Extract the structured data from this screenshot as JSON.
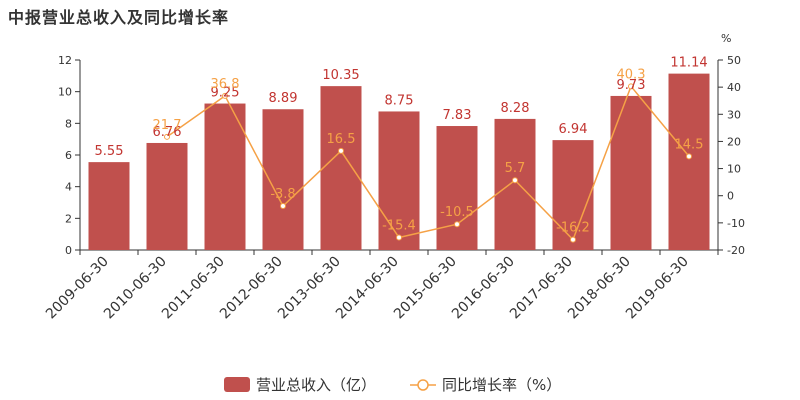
{
  "title": "中报营业总收入及同比增长率",
  "chart_data": {
    "type": "bar",
    "categories": [
      "2009-06-30",
      "2010-06-30",
      "2011-06-30",
      "2012-06-30",
      "2013-06-30",
      "2014-06-30",
      "2015-06-30",
      "2016-06-30",
      "2017-06-30",
      "2018-06-30",
      "2019-06-30"
    ],
    "series": [
      {
        "name": "营业总收入（亿）",
        "type": "bar",
        "axis": "left",
        "values": [
          5.55,
          6.76,
          9.25,
          8.89,
          10.35,
          8.75,
          7.83,
          8.28,
          6.94,
          9.73,
          11.14
        ],
        "labels": [
          "5.55",
          "6.76",
          "9.25",
          "8.89",
          "10.35",
          "8.75",
          "7.83",
          "8.28",
          "6.94",
          "9.73",
          "11.14"
        ],
        "color": "#c0504d"
      },
      {
        "name": "同比增长率（%）",
        "type": "line",
        "axis": "right",
        "values": [
          null,
          21.7,
          36.8,
          -3.8,
          16.5,
          -15.4,
          -10.5,
          5.7,
          -16.2,
          40.3,
          14.5
        ],
        "labels": [
          "",
          "21.7",
          "36.8",
          "-3.8",
          "16.5",
          "-15.4",
          "-10.5",
          "5.7",
          "-16.2",
          "40.3",
          "14.5"
        ],
        "color": "#f5a146"
      }
    ],
    "y_left": {
      "min": 0,
      "max": 12,
      "ticks": [
        0,
        2,
        4,
        6,
        8,
        10,
        12
      ]
    },
    "y_right": {
      "min": -20,
      "max": 50,
      "ticks": [
        -20,
        -10,
        0,
        10,
        20,
        30,
        40,
        50
      ],
      "unit": "%"
    },
    "legend": "bottom-center",
    "grid": false
  }
}
